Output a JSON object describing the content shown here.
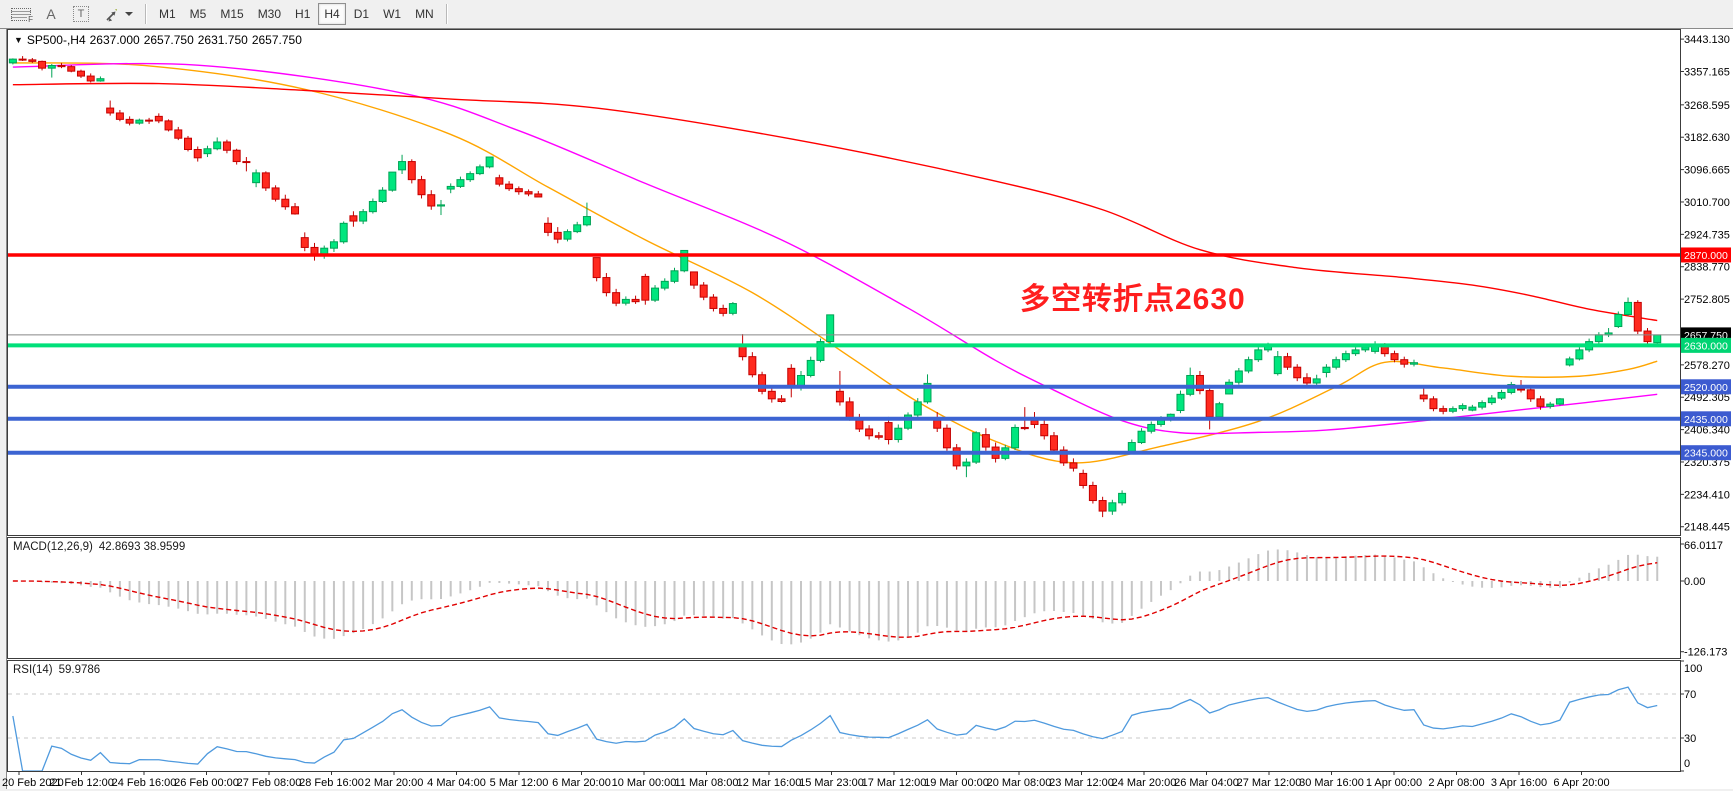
{
  "toolbar": {
    "icons": [
      {
        "name": "line-studies-grid-icon",
        "glyph": "F"
      },
      {
        "name": "text-label-icon",
        "glyph": "A"
      },
      {
        "name": "text-tool-icon",
        "glyph": "T"
      },
      {
        "name": "object-arrows-icon",
        "glyph": ""
      }
    ],
    "timeframes": [
      "M1",
      "M5",
      "M15",
      "M30",
      "H1",
      "H4",
      "D1",
      "W1",
      "MN"
    ],
    "active_timeframe": "H4"
  },
  "chart": {
    "symbol_marker": "▼",
    "symbol_title": "SP500-,H4",
    "ohlc": {
      "open": "2637.000",
      "high": "2657.750",
      "low": "2631.750",
      "close": "2657.750"
    },
    "annotation": {
      "text": "多空转折点2630",
      "color": "#ff1e1e"
    }
  },
  "colors": {
    "candle_up_fill": "#00e67e",
    "candle_up_border": "#00a355",
    "candle_dn_fill": "#ff2a1f",
    "candle_dn_border": "#c40000",
    "ma_fast": "#ffa500",
    "ma_mid": "#ff00ff",
    "ma_slow": "#ff0000",
    "macd_hist": "#c6c6c6",
    "macd_signal": "#e00000",
    "rsi_line": "#4f9ade",
    "pane_border": "#3c3c3c",
    "axis_text": "#000000"
  },
  "chart_data": {
    "type": "candlestick+indicators",
    "symbol": "SP500-,H4",
    "ylim": [
      2126.5,
      3467.3
    ],
    "price_axis_ticks": [
      3443.13,
      3357.165,
      3268.595,
      3182.63,
      3096.665,
      3010.7,
      2924.735,
      2838.77,
      2752.805,
      2578.27,
      2492.305,
      2406.34,
      2320.375,
      2234.41,
      2148.445
    ],
    "hlines": [
      {
        "price": 2870.0,
        "label": "2870.000",
        "color": "#ff0000",
        "width": 3.5,
        "label_bg": "#ff0000"
      },
      {
        "price": 2657.75,
        "label": "2657.750",
        "color": "#888888",
        "width": 1,
        "label_bg": "#000000"
      },
      {
        "price": 2630.0,
        "label": "2630.000",
        "color": "#00e07a",
        "width": 4,
        "label_bg": "#00d473"
      },
      {
        "price": 2520.0,
        "label": "2520.000",
        "color": "#3c64d2",
        "width": 4,
        "label_bg": "#3c5bd0"
      },
      {
        "price": 2435.0,
        "label": "2435.000",
        "color": "#3c64d2",
        "width": 4,
        "label_bg": "#3c5bd0"
      },
      {
        "price": 2345.0,
        "label": "2345.000",
        "color": "#3c64d2",
        "width": 4,
        "label_bg": "#3c5bd0"
      }
    ],
    "ma_lines": [
      {
        "name": "ma-fast-orange",
        "color": "#ffa500",
        "width": 1.4,
        "points": [
          [
            0,
            3380
          ],
          [
            14,
            3372
          ],
          [
            30,
            3310
          ],
          [
            45,
            3190
          ],
          [
            55,
            3050
          ],
          [
            65,
            2910
          ],
          [
            76,
            2770
          ],
          [
            86,
            2600
          ],
          [
            93,
            2480
          ],
          [
            101,
            2375
          ],
          [
            109,
            2318
          ],
          [
            118,
            2362
          ],
          [
            128,
            2428
          ],
          [
            136,
            2520
          ],
          [
            141,
            2585
          ],
          [
            147,
            2570
          ],
          [
            154,
            2548
          ],
          [
            161,
            2548
          ],
          [
            166,
            2566
          ],
          [
            169,
            2588
          ]
        ]
      },
      {
        "name": "ma-mid-magenta",
        "color": "#ff00ff",
        "width": 1.4,
        "points": [
          [
            0,
            3369
          ],
          [
            19,
            3374
          ],
          [
            40,
            3300
          ],
          [
            52,
            3200
          ],
          [
            65,
            3060
          ],
          [
            79,
            2910
          ],
          [
            92,
            2729
          ],
          [
            101,
            2590
          ],
          [
            107,
            2511
          ],
          [
            114,
            2430
          ],
          [
            120,
            2398
          ],
          [
            128,
            2399
          ],
          [
            135,
            2405
          ],
          [
            145,
            2430
          ],
          [
            156,
            2462
          ],
          [
            163,
            2482
          ],
          [
            169,
            2500
          ]
        ]
      },
      {
        "name": "ma-slow-red",
        "color": "#ff0000",
        "width": 1.4,
        "points": [
          [
            0,
            3322
          ],
          [
            15,
            3325
          ],
          [
            30,
            3307
          ],
          [
            45,
            3284
          ],
          [
            60,
            3260
          ],
          [
            80,
            3178
          ],
          [
            100,
            3072
          ],
          [
            112,
            2990
          ],
          [
            122,
            2884
          ],
          [
            132,
            2836
          ],
          [
            143,
            2810
          ],
          [
            150,
            2790
          ],
          [
            156,
            2762
          ],
          [
            162,
            2726
          ],
          [
            169,
            2696
          ]
        ]
      }
    ],
    "macd": {
      "label": "MACD(12,26,9)",
      "values_text": "42.8693 38.9599",
      "params": [
        12,
        26,
        9
      ],
      "axis": [
        {
          "v": 66.0117,
          "s": "66.0117"
        },
        {
          "v": 0,
          "s": "0.00"
        },
        {
          "v": -126.173,
          "s": "-126.173"
        }
      ]
    },
    "rsi": {
      "label": "RSI(14)",
      "value_text": "59.9786",
      "period": 14,
      "axis": [
        {
          "v": 100,
          "s": "100"
        },
        {
          "v": 70,
          "s": "70"
        },
        {
          "v": 30,
          "s": "30"
        },
        {
          "v": 0,
          "s": "0"
        }
      ],
      "levels": [
        70,
        30
      ]
    },
    "date_labels": [
      "20 Feb 2020",
      "21 Feb 12:00",
      "24 Feb 16:00",
      "26 Feb 00:00",
      "27 Feb 08:00",
      "28 Feb 16:00",
      "2 Mar 20:00",
      "4 Mar 04:00",
      "5 Mar 12:00",
      "6 Mar 20:00",
      "10 Mar 00:00",
      "11 Mar 08:00",
      "12 Mar 16:00",
      "15 Mar 23:00",
      "17 Mar 12:00",
      "19 Mar 00:00",
      "20 Mar 08:00",
      "23 Mar 12:00",
      "24 Mar 20:00",
      "26 Mar 04:00",
      "27 Mar 12:00",
      "30 Mar 16:00",
      "1 Apr 00:00",
      "2 Apr 08:00",
      "3 Apr 16:00",
      "6 Apr 20:00"
    ],
    "candles": [
      [
        3380,
        3392,
        3376,
        3390
      ],
      [
        3390,
        3398,
        3385,
        3388
      ],
      [
        3388,
        3393,
        3380,
        3384
      ],
      [
        3384,
        3386,
        3360,
        3366
      ],
      [
        3366,
        3377,
        3341,
        3373
      ],
      [
        3373,
        3380,
        3366,
        3370
      ],
      [
        3370,
        3374,
        3355,
        3358
      ],
      [
        3358,
        3362,
        3340,
        3345
      ],
      [
        3345,
        3352,
        3328,
        3332
      ],
      [
        3332,
        3344,
        3330,
        3338
      ],
      [
        3260,
        3280,
        3240,
        3247
      ],
      [
        3247,
        3255,
        3225,
        3230
      ],
      [
        3230,
        3238,
        3214,
        3220
      ],
      [
        3220,
        3232,
        3216,
        3228
      ],
      [
        3228,
        3234,
        3218,
        3226
      ],
      [
        3238,
        3246,
        3220,
        3226
      ],
      [
        3226,
        3230,
        3198,
        3202
      ],
      [
        3202,
        3210,
        3175,
        3180
      ],
      [
        3180,
        3186,
        3145,
        3150
      ],
      [
        3150,
        3158,
        3118,
        3128
      ],
      [
        3139,
        3160,
        3130,
        3152
      ],
      [
        3152,
        3182,
        3148,
        3170
      ],
      [
        3170,
        3176,
        3140,
        3148
      ],
      [
        3148,
        3152,
        3110,
        3118
      ],
      [
        3118,
        3130,
        3092,
        3116
      ],
      [
        3062,
        3097,
        3050,
        3088
      ],
      [
        3088,
        3092,
        3040,
        3048
      ],
      [
        3048,
        3055,
        3012,
        3018
      ],
      [
        3018,
        3030,
        2990,
        2998
      ],
      [
        2998,
        3008,
        2977,
        2979
      ],
      [
        2916,
        2930,
        2880,
        2890
      ],
      [
        2890,
        2902,
        2855,
        2868
      ],
      [
        2868,
        2895,
        2860,
        2888
      ],
      [
        2888,
        2912,
        2878,
        2905
      ],
      [
        2905,
        2959,
        2900,
        2954
      ],
      [
        2974,
        2986,
        2945,
        2960
      ],
      [
        2960,
        2992,
        2952,
        2985
      ],
      [
        2985,
        3020,
        2980,
        3012
      ],
      [
        3012,
        3050,
        3008,
        3042
      ],
      [
        3042,
        3090,
        3038,
        3090
      ],
      [
        3096,
        3136,
        3085,
        3118
      ],
      [
        3118,
        3124,
        3060,
        3070
      ],
      [
        3070,
        3080,
        3020,
        3030
      ],
      [
        3030,
        3042,
        2990,
        3000
      ],
      [
        3000,
        3016,
        2976,
        3003
      ],
      [
        3045,
        3060,
        3034,
        3052
      ],
      [
        3052,
        3078,
        3048,
        3070
      ],
      [
        3070,
        3092,
        3064,
        3086
      ],
      [
        3086,
        3110,
        3082,
        3104
      ],
      [
        3104,
        3130,
        3100,
        3130
      ],
      [
        3075,
        3083,
        3052,
        3058
      ],
      [
        3058,
        3066,
        3040,
        3046
      ],
      [
        3046,
        3052,
        3030,
        3038
      ],
      [
        3038,
        3044,
        3026,
        3032
      ],
      [
        3032,
        3040,
        3024,
        3024
      ],
      [
        2954,
        2970,
        2920,
        2930
      ],
      [
        2930,
        2944,
        2901,
        2912
      ],
      [
        2912,
        2938,
        2906,
        2932
      ],
      [
        2932,
        2958,
        2928,
        2950
      ],
      [
        2950,
        3009,
        2946,
        2972
      ],
      [
        2863,
        2863,
        2800,
        2810
      ],
      [
        2810,
        2822,
        2760,
        2770
      ],
      [
        2770,
        2780,
        2734,
        2742
      ],
      [
        2742,
        2760,
        2736,
        2752
      ],
      [
        2752,
        2762,
        2740,
        2746
      ],
      [
        2813,
        2820,
        2738,
        2750
      ],
      [
        2750,
        2790,
        2745,
        2782
      ],
      [
        2782,
        2808,
        2776,
        2800
      ],
      [
        2800,
        2836,
        2795,
        2828
      ],
      [
        2828,
        2882,
        2824,
        2882
      ],
      [
        2825,
        2825,
        2780,
        2790
      ],
      [
        2790,
        2798,
        2750,
        2758
      ],
      [
        2758,
        2766,
        2720,
        2728
      ],
      [
        2728,
        2738,
        2707,
        2715
      ],
      [
        2715,
        2745,
        2710,
        2741
      ],
      [
        2630,
        2660,
        2590,
        2600
      ],
      [
        2600,
        2612,
        2545,
        2552
      ],
      [
        2552,
        2560,
        2500,
        2508
      ],
      [
        2508,
        2520,
        2478,
        2488
      ],
      [
        2488,
        2498,
        2478,
        2481
      ],
      [
        2569,
        2580,
        2492,
        2520
      ],
      [
        2520,
        2562,
        2510,
        2550
      ],
      [
        2550,
        2600,
        2545,
        2590
      ],
      [
        2590,
        2648,
        2585,
        2640
      ],
      [
        2640,
        2711,
        2635,
        2711
      ],
      [
        2508,
        2562,
        2470,
        2480
      ],
      [
        2480,
        2492,
        2430,
        2438
      ],
      [
        2438,
        2448,
        2400,
        2408
      ],
      [
        2408,
        2418,
        2380,
        2390
      ],
      [
        2390,
        2400,
        2380,
        2386
      ],
      [
        2425,
        2440,
        2367,
        2380
      ],
      [
        2380,
        2420,
        2372,
        2410
      ],
      [
        2410,
        2452,
        2405,
        2445
      ],
      [
        2445,
        2490,
        2440,
        2480
      ],
      [
        2480,
        2553,
        2475,
        2529
      ],
      [
        2436,
        2453,
        2400,
        2410
      ],
      [
        2410,
        2420,
        2350,
        2358
      ],
      [
        2358,
        2368,
        2300,
        2310
      ],
      [
        2310,
        2330,
        2280,
        2320
      ],
      [
        2320,
        2402,
        2315,
        2398
      ],
      [
        2393,
        2410,
        2350,
        2360
      ],
      [
        2360,
        2372,
        2319,
        2330
      ],
      [
        2330,
        2366,
        2325,
        2358
      ],
      [
        2358,
        2420,
        2352,
        2412
      ],
      [
        2412,
        2466,
        2405,
        2409
      ],
      [
        2431,
        2453,
        2410,
        2420
      ],
      [
        2420,
        2432,
        2380,
        2390
      ],
      [
        2390,
        2400,
        2344,
        2352
      ],
      [
        2352,
        2362,
        2310,
        2318
      ],
      [
        2318,
        2330,
        2295,
        2304
      ],
      [
        2290,
        2300,
        2250,
        2258
      ],
      [
        2258,
        2268,
        2210,
        2218
      ],
      [
        2218,
        2228,
        2174,
        2190
      ],
      [
        2190,
        2220,
        2180,
        2212
      ],
      [
        2212,
        2245,
        2205,
        2237
      ],
      [
        2344,
        2380,
        2344,
        2372
      ],
      [
        2372,
        2410,
        2368,
        2402
      ],
      [
        2402,
        2428,
        2396,
        2420
      ],
      [
        2420,
        2442,
        2414,
        2435
      ],
      [
        2435,
        2449,
        2428,
        2447
      ],
      [
        2457,
        2510,
        2450,
        2500
      ],
      [
        2500,
        2571,
        2495,
        2550
      ],
      [
        2550,
        2562,
        2500,
        2510
      ],
      [
        2510,
        2525,
        2407,
        2440
      ],
      [
        2440,
        2480,
        2432,
        2475
      ],
      [
        2501,
        2540,
        2500,
        2532
      ],
      [
        2532,
        2570,
        2526,
        2562
      ],
      [
        2562,
        2600,
        2556,
        2592
      ],
      [
        2592,
        2625,
        2586,
        2618
      ],
      [
        2618,
        2637,
        2612,
        2630
      ],
      [
        2555,
        2615,
        2550,
        2600
      ],
      [
        2600,
        2610,
        2565,
        2572
      ],
      [
        2572,
        2580,
        2535,
        2544
      ],
      [
        2544,
        2556,
        2520,
        2530
      ],
      [
        2530,
        2552,
        2525,
        2541
      ],
      [
        2558,
        2580,
        2545,
        2572
      ],
      [
        2572,
        2600,
        2566,
        2592
      ],
      [
        2592,
        2616,
        2586,
        2608
      ],
      [
        2608,
        2625,
        2602,
        2618
      ],
      [
        2618,
        2631,
        2612,
        2626
      ],
      [
        2614,
        2641,
        2608,
        2630
      ],
      [
        2630,
        2636,
        2600,
        2608
      ],
      [
        2608,
        2616,
        2585,
        2592
      ],
      [
        2592,
        2600,
        2571,
        2580
      ],
      [
        2580,
        2592,
        2574,
        2584
      ],
      [
        2498,
        2522,
        2480,
        2488
      ],
      [
        2488,
        2495,
        2455,
        2462
      ],
      [
        2462,
        2470,
        2447,
        2455
      ],
      [
        2455,
        2468,
        2450,
        2462
      ],
      [
        2462,
        2476,
        2456,
        2470
      ],
      [
        2458,
        2472,
        2455,
        2466
      ],
      [
        2466,
        2484,
        2460,
        2478
      ],
      [
        2478,
        2498,
        2472,
        2490
      ],
      [
        2490,
        2512,
        2485,
        2505
      ],
      [
        2505,
        2533,
        2500,
        2526
      ],
      [
        2514,
        2538,
        2505,
        2512
      ],
      [
        2512,
        2520,
        2480,
        2488
      ],
      [
        2488,
        2496,
        2459,
        2468
      ],
      [
        2468,
        2480,
        2462,
        2474
      ],
      [
        2474,
        2490,
        2470,
        2488
      ],
      [
        2578,
        2600,
        2574,
        2594
      ],
      [
        2594,
        2625,
        2590,
        2618
      ],
      [
        2618,
        2648,
        2612,
        2640
      ],
      [
        2640,
        2665,
        2634,
        2658
      ],
      [
        2658,
        2676,
        2652,
        2663
      ],
      [
        2680,
        2720,
        2676,
        2712
      ],
      [
        2712,
        2757,
        2708,
        2744
      ],
      [
        2744,
        2750,
        2660,
        2668
      ],
      [
        2668,
        2676,
        2630,
        2640
      ],
      [
        2637,
        2657.75,
        2631.75,
        2657.75
      ]
    ]
  }
}
